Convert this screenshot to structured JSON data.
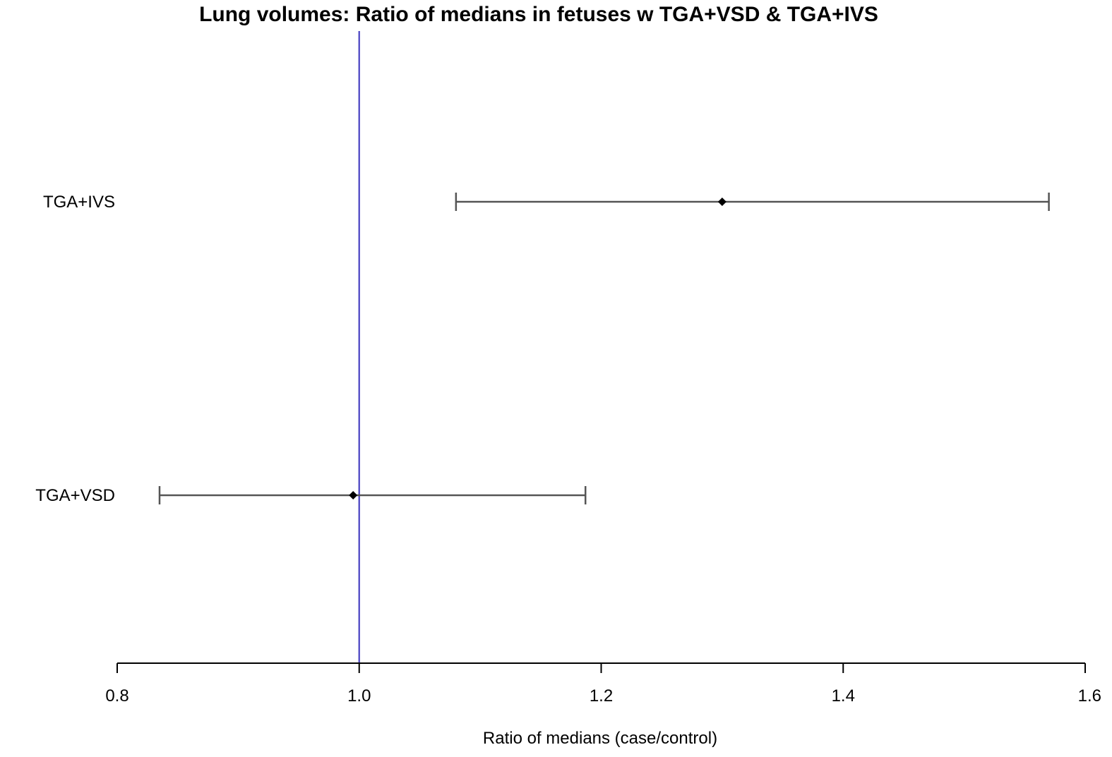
{
  "chart_data": {
    "type": "forest",
    "title": "Lung volumes: Ratio of medians in fetuses w TGA+VSD & TGA+IVS",
    "xlabel": "Ratio of medians (case/control)",
    "ylabel": "",
    "xlim": [
      0.8,
      1.6
    ],
    "xticks": [
      0.8,
      1.0,
      1.2,
      1.4,
      1.6
    ],
    "xtick_labels": [
      "0.8",
      "1.0",
      "1.2",
      "1.4",
      "1.6"
    ],
    "reference_line": 1.0,
    "grid": false,
    "legend": "none",
    "rows": [
      {
        "label": "TGA+IVS",
        "estimate": 1.3,
        "lower": 1.08,
        "upper": 1.57
      },
      {
        "label": "TGA+VSD",
        "estimate": 0.995,
        "lower": 0.835,
        "upper": 1.187
      }
    ],
    "colors": {
      "reference_line": "#5b55c8",
      "interval": "#555555",
      "point": "#000000",
      "axis": "#000000"
    }
  }
}
